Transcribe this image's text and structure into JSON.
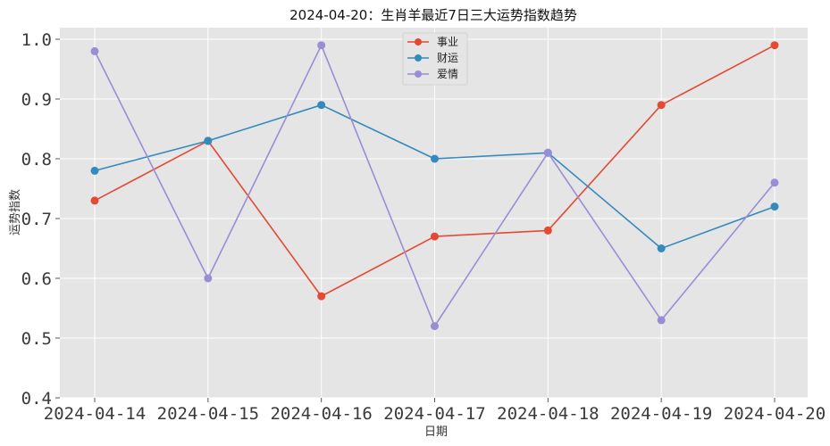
{
  "chart_data": {
    "type": "line",
    "title": "2024-04-20：生肖羊最近7日三大运势指数趋势",
    "xlabel": "日期",
    "ylabel": "运势指数",
    "categories": [
      "2024-04-14",
      "2024-04-15",
      "2024-04-16",
      "2024-04-17",
      "2024-04-18",
      "2024-04-19",
      "2024-04-20"
    ],
    "ylim": [
      0.4,
      1.0
    ],
    "yticks": [
      "0.4",
      "0.5",
      "0.6",
      "0.7",
      "0.8",
      "0.9",
      "1.0"
    ],
    "grid": true,
    "legend_position": "top-center",
    "series": [
      {
        "name": "事业",
        "color": "#E24A33",
        "values": [
          0.73,
          0.83,
          0.57,
          0.67,
          0.68,
          0.89,
          0.99
        ]
      },
      {
        "name": "财运",
        "color": "#348ABD",
        "values": [
          0.78,
          0.83,
          0.89,
          0.8,
          0.81,
          0.65,
          0.72
        ]
      },
      {
        "name": "爱情",
        "color": "#988ED5",
        "values": [
          0.98,
          0.6,
          0.99,
          0.52,
          0.81,
          0.53,
          0.76
        ]
      }
    ]
  }
}
